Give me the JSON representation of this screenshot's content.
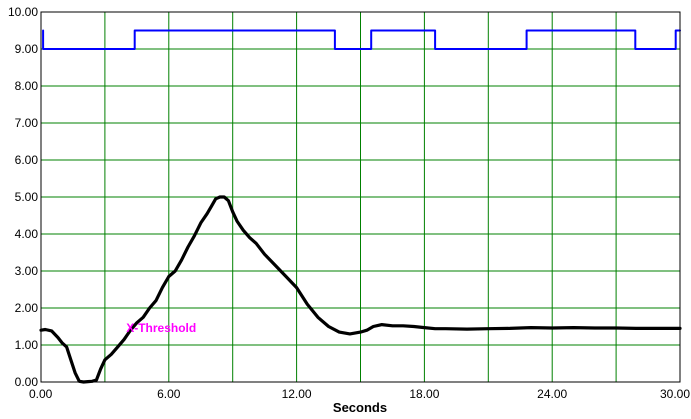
{
  "chart_data": {
    "type": "line",
    "xlabel": "Seconds",
    "ylabel": "",
    "xlim": [
      0,
      30
    ],
    "ylim": [
      0,
      10
    ],
    "grid": true,
    "x_ticks": [
      "0.00",
      "6.00",
      "12.00",
      "18.00",
      "24.00",
      "30.00"
    ],
    "y_ticks": [
      "0.00",
      "1.00",
      "2.00",
      "3.00",
      "4.00",
      "5.00",
      "6.00",
      "7.00",
      "8.00",
      "9.00",
      "10.00"
    ],
    "annotation": {
      "text": "X-Threshold",
      "x": 4.0,
      "y": 1.35,
      "color": "#ff00ff"
    },
    "colors": {
      "grid": "#008000",
      "frame": "#000000",
      "upper_series": "#0000ff",
      "lower_series": "#000000"
    },
    "series": [
      {
        "color": "#0000ff",
        "style": "step",
        "x": [
          0.1,
          0.1,
          0.1,
          4.4,
          4.4,
          13.8,
          13.8,
          15.5,
          15.5,
          18.5,
          18.5,
          22.8,
          22.8,
          27.9,
          27.9,
          29.8,
          29.8,
          30.0
        ],
        "y": [
          9.5,
          9.5,
          9.0,
          9.0,
          9.5,
          9.5,
          9.0,
          9.0,
          9.5,
          9.5,
          9.0,
          9.0,
          9.5,
          9.5,
          9.0,
          9.0,
          9.5,
          9.5
        ]
      },
      {
        "color": "#000000",
        "style": "line",
        "x": [
          0.0,
          0.2,
          0.5,
          0.8,
          1.0,
          1.2,
          1.4,
          1.6,
          1.8,
          2.0,
          2.2,
          2.4,
          2.6,
          2.8,
          3.0,
          3.3,
          3.6,
          3.9,
          4.2,
          4.5,
          4.8,
          5.1,
          5.4,
          5.7,
          6.0,
          6.3,
          6.6,
          6.9,
          7.2,
          7.5,
          7.8,
          8.0,
          8.2,
          8.4,
          8.6,
          8.8,
          9.0,
          9.2,
          9.5,
          9.8,
          10.1,
          10.5,
          11.0,
          11.5,
          12.0,
          12.5,
          13.0,
          13.5,
          14.0,
          14.5,
          15.0,
          15.3,
          15.6,
          16.0,
          16.5,
          17.0,
          17.5,
          18.0,
          18.5,
          19.0,
          20.0,
          21.0,
          22.0,
          23.0,
          24.0,
          25.0,
          26.0,
          27.0,
          28.0,
          29.0,
          30.0
        ],
        "y": [
          1.4,
          1.42,
          1.38,
          1.2,
          1.05,
          0.95,
          0.6,
          0.25,
          0.02,
          0.0,
          0.01,
          0.02,
          0.05,
          0.35,
          0.6,
          0.75,
          0.95,
          1.15,
          1.4,
          1.6,
          1.75,
          2.0,
          2.2,
          2.55,
          2.85,
          3.0,
          3.3,
          3.65,
          3.95,
          4.3,
          4.55,
          4.75,
          4.95,
          5.0,
          5.0,
          4.9,
          4.6,
          4.35,
          4.1,
          3.9,
          3.75,
          3.45,
          3.15,
          2.85,
          2.55,
          2.1,
          1.75,
          1.5,
          1.35,
          1.3,
          1.35,
          1.4,
          1.5,
          1.55,
          1.52,
          1.52,
          1.5,
          1.47,
          1.44,
          1.44,
          1.43,
          1.44,
          1.45,
          1.47,
          1.46,
          1.47,
          1.46,
          1.46,
          1.45,
          1.45,
          1.45
        ]
      }
    ]
  }
}
